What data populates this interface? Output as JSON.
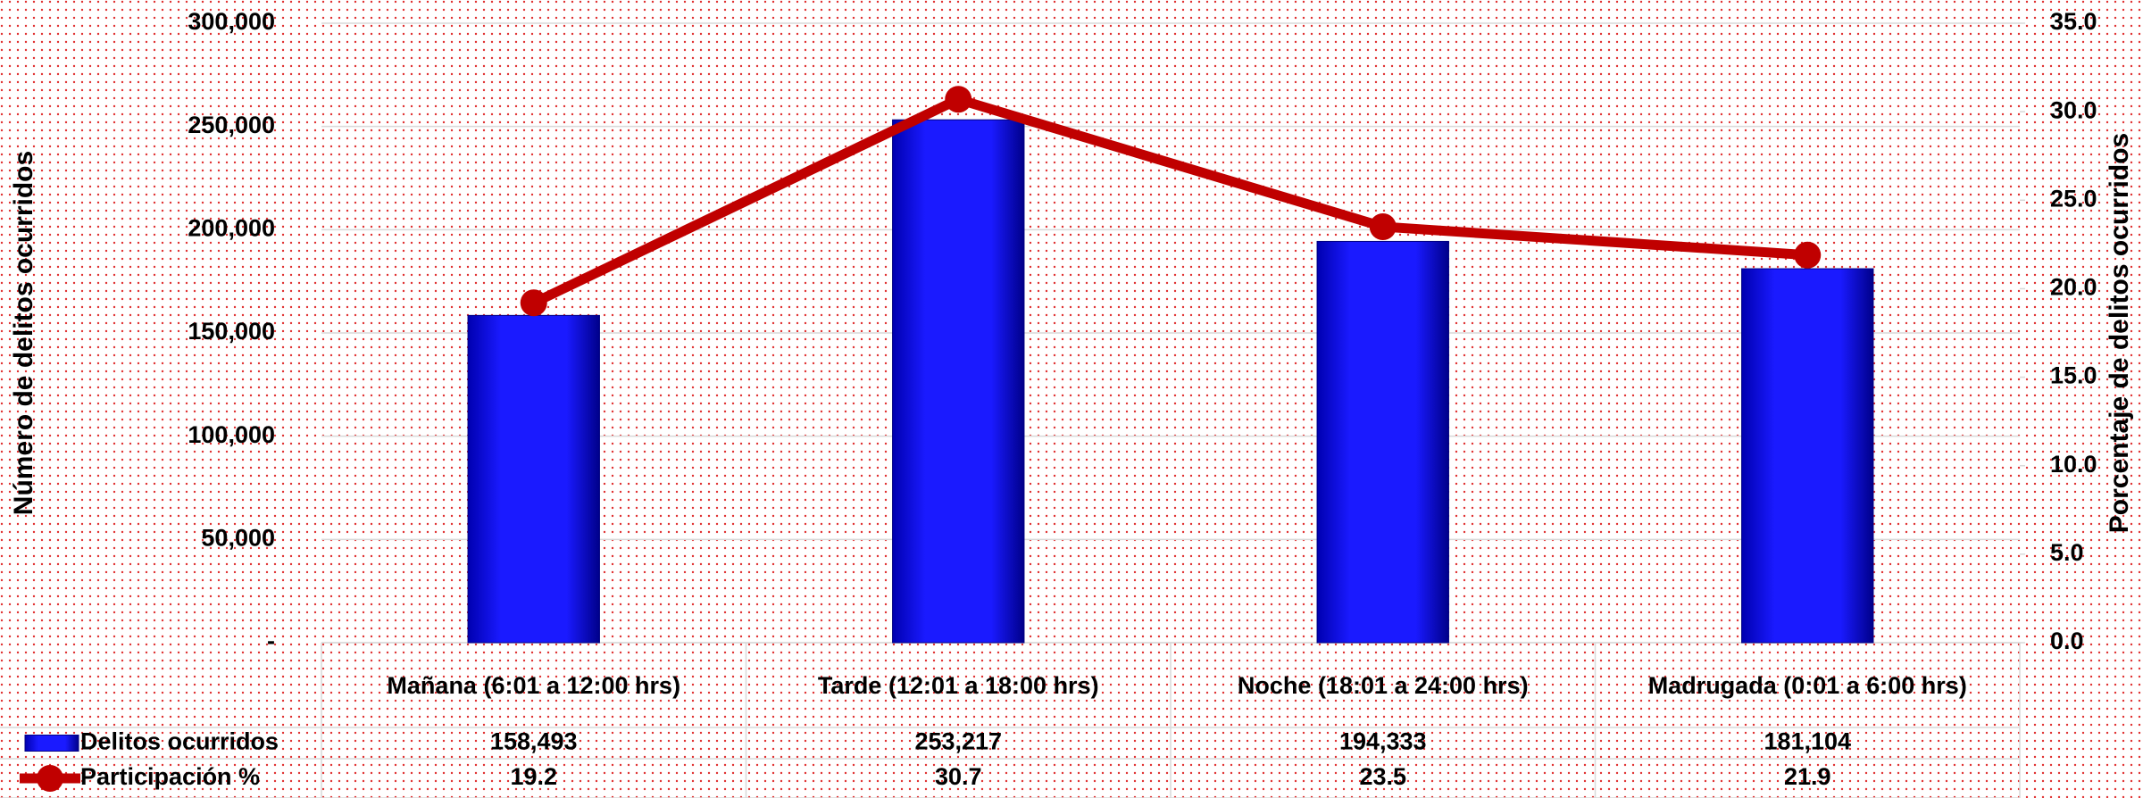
{
  "chart_data": {
    "type": "bar",
    "categories": [
      "Mañana (6:01 a 12:00 hrs)",
      "Tarde (12:01 a 18:00 hrs)",
      "Noche (18:01 a 24:00 hrs)",
      "Madrugada  (0:01 a 6:00 hrs)"
    ],
    "series": [
      {
        "name": "Delitos ocurridos",
        "color": "#0000ff",
        "values": [
          158493,
          253217,
          194333,
          181104
        ],
        "value_labels": [
          "158,493",
          "253,217",
          "194,333",
          "181,104"
        ]
      },
      {
        "name": "Participación %",
        "color": "#c00000",
        "values": [
          19.2,
          30.7,
          23.5,
          21.9
        ],
        "axis": "y2"
      }
    ],
    "ylabel": "Número de delitos ocurridos",
    "y2label": "Porcentaje de delitos ocurridos",
    "ylim": [
      0,
      300000
    ],
    "yticks": [
      {
        "value": 0,
        "label": "-"
      },
      {
        "value": 50000,
        "label": "50,000"
      },
      {
        "value": 100000,
        "label": "100,000"
      },
      {
        "value": 150000,
        "label": "150,000"
      },
      {
        "value": 200000,
        "label": "200,000"
      },
      {
        "value": 250000,
        "label": "250,000"
      },
      {
        "value": 300000,
        "label": "300,000"
      }
    ],
    "y2lim": [
      0,
      35
    ],
    "y2ticks": [
      {
        "value": 0,
        "label": "0.0"
      },
      {
        "value": 5,
        "label": "5.0"
      },
      {
        "value": 10,
        "label": "10.0"
      },
      {
        "value": 15,
        "label": "15.0"
      },
      {
        "value": 20,
        "label": "20.0"
      },
      {
        "value": 25,
        "label": "25.0"
      },
      {
        "value": 30,
        "label": "30.0"
      },
      {
        "value": 35,
        "label": "35.0"
      }
    ],
    "grid": true
  }
}
